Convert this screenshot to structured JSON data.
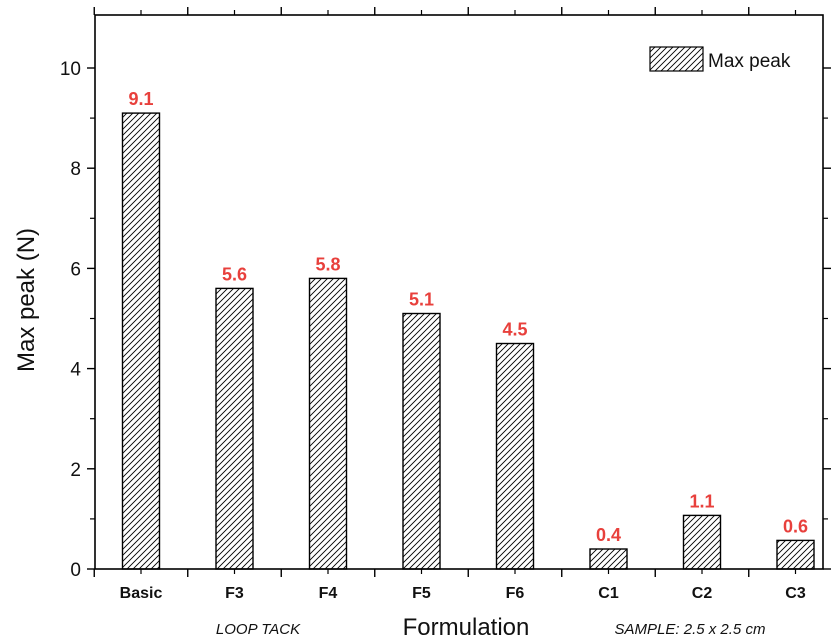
{
  "chart_data": {
    "type": "bar",
    "categories": [
      "Basic",
      "F3",
      "F4",
      "F5",
      "F6",
      "C1",
      "C2",
      "C3"
    ],
    "series": [
      {
        "name": "Max peak",
        "values": [
          9.1,
          5.6,
          5.8,
          5.1,
          4.5,
          0.4,
          1.07,
          0.57
        ]
      }
    ],
    "data_labels": [
      "9.1",
      "5.6",
      "5.8",
      "5.1",
      "4.5",
      "0.4",
      "1.1",
      "0.6"
    ],
    "y_ticks": [
      "0",
      "2",
      "4",
      "6",
      "8",
      "10"
    ],
    "ylim": [
      0,
      11
    ],
    "xlabel": "Formulation",
    "ylabel": "Max peak (N)",
    "legend": {
      "label": "Max peak",
      "position": "top-right"
    },
    "annotations": {
      "left": "LOOP TACK",
      "right": "SAMPLE: 2.5 x 2.5 cm"
    },
    "colors": {
      "bar_stroke": "#000000",
      "hatch": "#000000",
      "data_label": "#e8403c"
    },
    "grid": false
  }
}
